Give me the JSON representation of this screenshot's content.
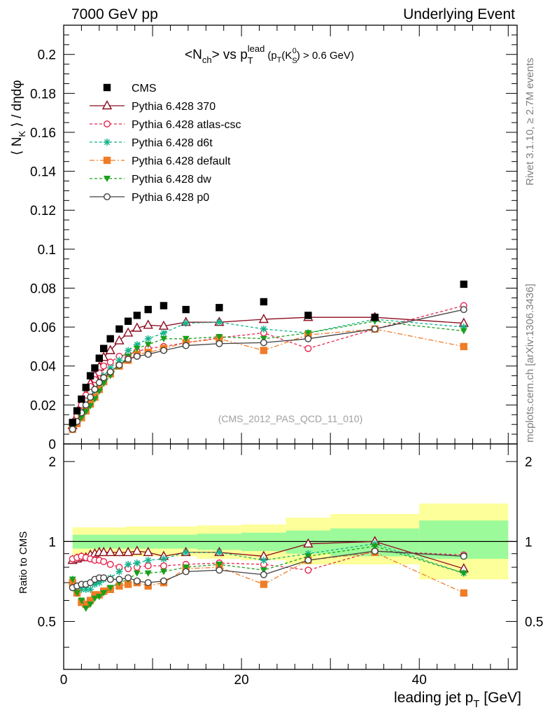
{
  "header": {
    "left": "7000 GeV pp",
    "right": "Underlying Event",
    "side_top": "Rivet 3.1.10, ≥ 2.7M events",
    "side_bottom": "mcplots.cern.ch [arXiv:1306.3436]",
    "watermark": "(CMS_2012_PAS_QCD_11_010)"
  },
  "chart_data": [
    {
      "type": "line",
      "title_parts": {
        "n": "<N",
        "n_sub": "ch",
        "vs": "> vs p",
        "p_sub": "T",
        "p_sup": "lead",
        "cut_a": "(p",
        "cut_b": "(K",
        "cut_c": "S",
        "cut_d": "0",
        "cut_e": ") > 0.6 GeV)"
      },
      "ylabel_parts": {
        "a": "⟨ N",
        "sub": "K",
        "b": " ⟩ / dηdφ"
      },
      "xlim": [
        0,
        51
      ],
      "ylim": [
        0,
        0.215
      ],
      "yticks": [
        "0.02",
        "0.04",
        "0.06",
        "0.08",
        "0.1",
        "0.12",
        "0.14",
        "0.16",
        "0.18",
        "0.2"
      ],
      "ytick_values": [
        0.02,
        0.04,
        0.06,
        0.08,
        0.1,
        0.12,
        0.14,
        0.16,
        0.18,
        0.2
      ],
      "ytick_zero": "0",
      "legend_placement": "top-left",
      "data": {
        "name": "CMS",
        "x": [
          1.0,
          1.5,
          2.0,
          2.5,
          3.0,
          3.5,
          4.0,
          4.5,
          5.25,
          6.25,
          7.25,
          8.25,
          9.5,
          11.25,
          13.75,
          17.5,
          22.5,
          27.5,
          35,
          45
        ],
        "y": [
          0.011,
          0.017,
          0.023,
          0.029,
          0.035,
          0.039,
          0.044,
          0.049,
          0.054,
          0.059,
          0.063,
          0.066,
          0.069,
          0.071,
          0.069,
          0.07,
          0.073,
          0.066,
          0.065,
          0.082
        ]
      },
      "series": [
        {
          "name": "Pythia 6.428 370",
          "color": "#8b0a1e",
          "dash": "",
          "marker": "tri-open",
          "x": [
            1.0,
            1.5,
            2.0,
            2.5,
            3.0,
            3.5,
            4.0,
            4.5,
            5.25,
            6.25,
            7.25,
            8.25,
            9.5,
            11.25,
            13.75,
            17.5,
            22.5,
            27.5,
            35,
            45
          ],
          "y": [
            0.0095,
            0.0145,
            0.02,
            0.0255,
            0.031,
            0.035,
            0.0395,
            0.0445,
            0.048,
            0.053,
            0.057,
            0.0595,
            0.061,
            0.0605,
            0.0625,
            0.0625,
            0.064,
            0.065,
            0.065,
            0.062
          ]
        },
        {
          "name": "Pythia 6.428 atlas-csc",
          "color": "#e8244d",
          "dash": "4,3",
          "marker": "circle-open",
          "x": [
            1.0,
            1.5,
            2.0,
            2.5,
            3.0,
            3.5,
            4.0,
            4.5,
            5.25,
            6.25,
            7.25,
            8.25,
            9.5,
            11.25,
            13.75,
            17.5,
            22.5,
            27.5,
            35,
            45
          ],
          "y": [
            0.0095,
            0.0145,
            0.02,
            0.025,
            0.0295,
            0.033,
            0.0365,
            0.04,
            0.042,
            0.045,
            0.046,
            0.0475,
            0.049,
            0.05,
            0.052,
            0.0545,
            0.057,
            0.049,
            0.059,
            0.071
          ]
        },
        {
          "name": "Pythia 6.428 d6t",
          "color": "#10b48c",
          "dash": "4,3",
          "marker": "star",
          "x": [
            1.0,
            1.5,
            2.0,
            2.5,
            3.0,
            3.5,
            4.0,
            4.5,
            5.25,
            6.25,
            7.25,
            8.25,
            9.5,
            11.25,
            13.75,
            17.5,
            22.5,
            27.5,
            35,
            45
          ],
          "y": [
            0.008,
            0.0115,
            0.015,
            0.019,
            0.023,
            0.027,
            0.031,
            0.035,
            0.039,
            0.043,
            0.048,
            0.051,
            0.054,
            0.057,
            0.062,
            0.0625,
            0.059,
            0.057,
            0.064,
            0.06
          ]
        },
        {
          "name": "Pythia 6.428 default",
          "color": "#f07c26",
          "dash": "7,3,2,3",
          "marker": "square",
          "x": [
            1.0,
            1.5,
            2.0,
            2.5,
            3.0,
            3.5,
            4.0,
            4.5,
            5.25,
            6.25,
            7.25,
            8.25,
            9.5,
            11.25,
            13.75,
            17.5,
            22.5,
            27.5,
            35,
            45
          ],
          "y": [
            0.0075,
            0.0105,
            0.0135,
            0.017,
            0.0205,
            0.024,
            0.028,
            0.032,
            0.036,
            0.04,
            0.043,
            0.046,
            0.047,
            0.049,
            0.052,
            0.054,
            0.048,
            0.056,
            0.059,
            0.05
          ]
        },
        {
          "name": "Pythia 6.428 dw",
          "color": "#1aa01a",
          "dash": "4,3",
          "marker": "tri-down",
          "x": [
            1.0,
            1.5,
            2.0,
            2.5,
            3.0,
            3.5,
            4.0,
            4.5,
            5.25,
            6.25,
            7.25,
            8.25,
            9.5,
            11.25,
            13.75,
            17.5,
            22.5,
            27.5,
            35,
            45
          ],
          "y": [
            0.008,
            0.011,
            0.0135,
            0.0165,
            0.0195,
            0.023,
            0.027,
            0.031,
            0.035,
            0.04,
            0.045,
            0.049,
            0.051,
            0.054,
            0.054,
            0.055,
            0.054,
            0.057,
            0.063,
            0.058
          ]
        },
        {
          "name": "Pythia 6.428 p0",
          "color": "#404040",
          "dash": "",
          "marker": "circle-open",
          "x": [
            1.0,
            1.5,
            2.0,
            2.5,
            3.0,
            3.5,
            4.0,
            4.5,
            5.25,
            6.25,
            7.25,
            8.25,
            9.5,
            11.25,
            13.75,
            17.5,
            22.5,
            27.5,
            35,
            45
          ],
          "y": [
            0.0075,
            0.0115,
            0.016,
            0.02,
            0.024,
            0.028,
            0.0315,
            0.034,
            0.037,
            0.0405,
            0.0435,
            0.045,
            0.046,
            0.048,
            0.0505,
            0.0515,
            0.052,
            0.054,
            0.059,
            0.069
          ]
        }
      ]
    },
    {
      "type": "line",
      "ylabel": "Ratio to CMS",
      "xlabel_a": "leading jet p",
      "xlabel_sub": "T",
      "xlabel_b": " [GeV]",
      "xlim": [
        0,
        51
      ],
      "ylim": [
        0.33,
        2.33
      ],
      "log_y": true,
      "yticks": [
        "0.5",
        "1",
        "2"
      ],
      "ytick_values": [
        0.5,
        1,
        2
      ],
      "xticks": [
        "0",
        "20",
        "40"
      ],
      "xtick_values": [
        0,
        20,
        40
      ],
      "bands": {
        "bins": [
          [
            1,
            7
          ],
          [
            7,
            15
          ],
          [
            15,
            20
          ],
          [
            20,
            25
          ],
          [
            25,
            30
          ],
          [
            30,
            40
          ],
          [
            40,
            50
          ]
        ],
        "inner": [
          [
            0.94,
            1.06
          ],
          [
            0.94,
            1.06
          ],
          [
            0.93,
            1.07
          ],
          [
            0.92,
            1.08
          ],
          [
            0.9,
            1.1
          ],
          [
            0.88,
            1.12
          ],
          [
            0.86,
            1.2
          ]
        ],
        "outer": [
          [
            0.88,
            1.13
          ],
          [
            0.88,
            1.14
          ],
          [
            0.86,
            1.15
          ],
          [
            0.85,
            1.16
          ],
          [
            0.82,
            1.23
          ],
          [
            0.82,
            1.27
          ],
          [
            0.72,
            1.39
          ]
        ],
        "inner_color": "#9dfa9a",
        "outer_color": "#fdff9a"
      },
      "series": [
        {
          "name": "Pythia 6.428 370",
          "color": "#8b0a1e",
          "dash": "",
          "marker": "tri-open",
          "x": [
            1.0,
            1.5,
            2.0,
            2.5,
            3.0,
            3.5,
            4.0,
            4.5,
            5.25,
            6.25,
            7.25,
            8.25,
            9.5,
            11.25,
            13.75,
            17.5,
            22.5,
            27.5,
            35,
            45
          ],
          "y": [
            0.85,
            0.86,
            0.87,
            0.87,
            0.89,
            0.9,
            0.91,
            0.91,
            0.91,
            0.91,
            0.91,
            0.92,
            0.91,
            0.88,
            0.91,
            0.91,
            0.88,
            0.98,
            1.0,
            0.79
          ]
        },
        {
          "name": "Pythia 6.428 atlas-csc",
          "color": "#e8244d",
          "dash": "4,3",
          "marker": "circle-open",
          "x": [
            1.0,
            1.5,
            2.0,
            2.5,
            3.0,
            3.5,
            4.0,
            4.5,
            5.25,
            6.25,
            7.25,
            8.25,
            9.5,
            11.25,
            13.75,
            17.5,
            22.5,
            27.5,
            35,
            45
          ],
          "y": [
            0.86,
            0.87,
            0.88,
            0.87,
            0.86,
            0.85,
            0.85,
            0.84,
            0.82,
            0.8,
            0.79,
            0.8,
            0.81,
            0.81,
            0.82,
            0.83,
            0.82,
            0.78,
            0.92,
            0.89
          ]
        },
        {
          "name": "Pythia 6.428 d6t",
          "color": "#10b48c",
          "dash": "4,3",
          "marker": "star",
          "x": [
            1.0,
            1.5,
            2.0,
            2.5,
            3.0,
            3.5,
            4.0,
            4.5,
            5.25,
            6.25,
            7.25,
            8.25,
            9.5,
            11.25,
            13.75,
            17.5,
            22.5,
            27.5,
            35,
            45
          ],
          "y": [
            0.72,
            0.68,
            0.66,
            0.66,
            0.66,
            0.69,
            0.7,
            0.72,
            0.73,
            0.77,
            0.82,
            0.83,
            0.85,
            0.86,
            0.91,
            0.91,
            0.85,
            0.9,
            0.98,
            0.76
          ]
        },
        {
          "name": "Pythia 6.428 default",
          "color": "#f07c26",
          "dash": "7,3,2,3",
          "marker": "square",
          "x": [
            1.0,
            1.5,
            2.0,
            2.5,
            3.0,
            3.5,
            4.0,
            4.5,
            5.25,
            6.25,
            7.25,
            8.25,
            9.5,
            11.25,
            13.75,
            17.5,
            22.5,
            27.5,
            35,
            45
          ],
          "y": [
            0.7,
            0.64,
            0.59,
            0.58,
            0.6,
            0.63,
            0.63,
            0.65,
            0.66,
            0.68,
            0.69,
            0.7,
            0.68,
            0.7,
            0.79,
            0.8,
            0.69,
            0.85,
            0.91,
            0.64
          ]
        },
        {
          "name": "Pythia 6.428 dw",
          "color": "#1aa01a",
          "dash": "4,3",
          "marker": "tri-down",
          "x": [
            1.0,
            1.5,
            2.0,
            2.5,
            3.0,
            3.5,
            4.0,
            4.5,
            5.25,
            6.25,
            7.25,
            8.25,
            9.5,
            11.25,
            13.75,
            17.5,
            22.5,
            27.5,
            35,
            45
          ],
          "y": [
            0.72,
            0.64,
            0.6,
            0.56,
            0.58,
            0.61,
            0.62,
            0.64,
            0.67,
            0.7,
            0.72,
            0.76,
            0.76,
            0.77,
            0.8,
            0.82,
            0.78,
            0.88,
            0.96,
            0.76
          ]
        },
        {
          "name": "Pythia 6.428 p0",
          "color": "#404040",
          "dash": "",
          "marker": "circle-open",
          "x": [
            1.0,
            1.5,
            2.0,
            2.5,
            3.0,
            3.5,
            4.0,
            4.5,
            5.25,
            6.25,
            7.25,
            8.25,
            9.5,
            11.25,
            13.75,
            17.5,
            22.5,
            27.5,
            35,
            45
          ],
          "y": [
            0.67,
            0.68,
            0.69,
            0.69,
            0.7,
            0.72,
            0.73,
            0.73,
            0.72,
            0.72,
            0.73,
            0.71,
            0.7,
            0.71,
            0.77,
            0.78,
            0.75,
            0.85,
            0.92,
            0.88
          ]
        }
      ]
    }
  ]
}
